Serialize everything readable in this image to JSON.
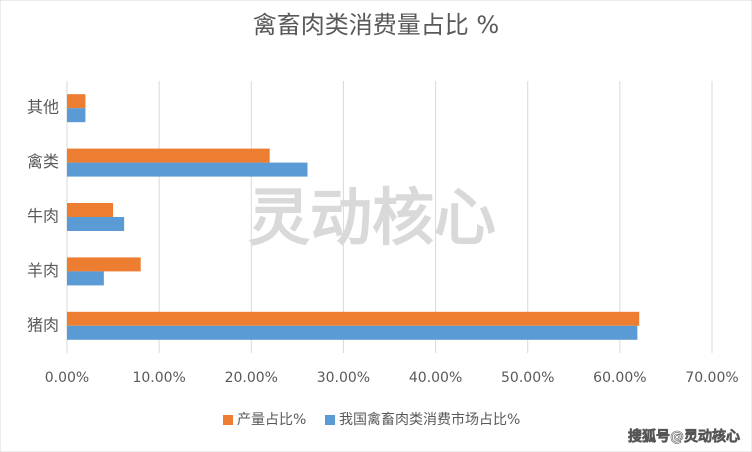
{
  "chart_data": {
    "type": "hbar",
    "title": "禽畜肉类消费量占比 %",
    "categories": [
      "其他",
      "禽类",
      "牛肉",
      "羊肉",
      "猪肉"
    ],
    "series": [
      {
        "name": "产量占比%",
        "color": "#ed7d31",
        "values": [
          2.0,
          22.0,
          5.0,
          8.0,
          62.1
        ]
      },
      {
        "name": "我国禽畜肉类消费市场占比%",
        "color": "#5b9bd5",
        "values": [
          2.0,
          26.1,
          6.2,
          4.0,
          61.9
        ]
      }
    ],
    "xlim": [
      0,
      70
    ],
    "xticks": [
      {
        "value": 0,
        "label": "0.00%"
      },
      {
        "value": 10,
        "label": "10.00%"
      },
      {
        "value": 20,
        "label": "20.00%"
      },
      {
        "value": 30,
        "label": "30.00%"
      },
      {
        "value": 40,
        "label": "40.00%"
      },
      {
        "value": 50,
        "label": "50.00%"
      },
      {
        "value": 60,
        "label": "60.00%"
      },
      {
        "value": 70,
        "label": "70.00%"
      }
    ],
    "grid": true,
    "legend": "bottom",
    "watermark": "灵动核心",
    "credit": "搜狐号@灵动核心"
  }
}
